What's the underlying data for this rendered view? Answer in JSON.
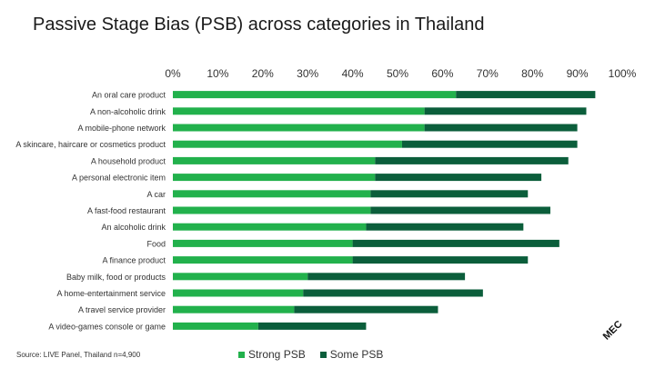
{
  "title": "Passive Stage Bias (PSB) across categories in Thailand",
  "source": "Source: LIVE Panel, Thailand n=4,900",
  "logo_text": "MEC",
  "chart_data": {
    "type": "bar",
    "orientation": "horizontal",
    "stacked": true,
    "categories": [
      "An oral care product",
      "A non-alcoholic drink",
      "A mobile-phone network",
      "A skincare, haircare or cosmetics product",
      "A household product",
      "A personal electronic item",
      "A car",
      "A fast-food restaurant",
      "An alcoholic drink",
      "Food",
      "A finance product",
      "Baby milk, food or products",
      "A home-entertainment service",
      "A travel service provider",
      "A video-games console or game"
    ],
    "series": [
      {
        "name": "Strong PSB",
        "color": "#22b14c",
        "values": [
          63,
          56,
          56,
          51,
          45,
          45,
          44,
          44,
          43,
          40,
          40,
          30,
          29,
          27,
          19
        ]
      },
      {
        "name": "Some PSB",
        "color": "#0b5e3b",
        "values": [
          31,
          36,
          34,
          39,
          43,
          37,
          35,
          40,
          35,
          46,
          39,
          35,
          40,
          32,
          24
        ]
      }
    ],
    "xlim": [
      0,
      100
    ],
    "ticks": [
      "0%",
      "10%",
      "20%",
      "30%",
      "40%",
      "50%",
      "60%",
      "70%",
      "80%",
      "90%",
      "100%"
    ],
    "axis_position": "top",
    "grid": false,
    "legend": "bottom"
  }
}
